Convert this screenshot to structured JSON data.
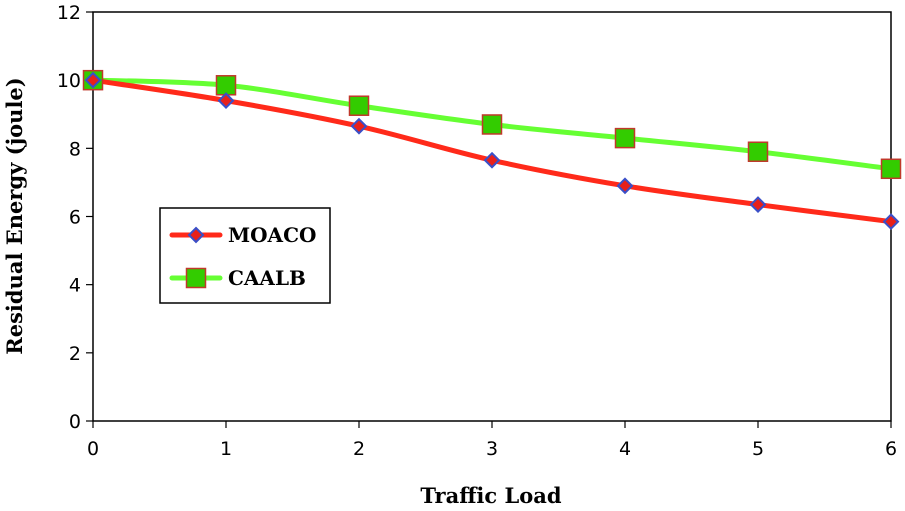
{
  "chart_data": {
    "type": "line",
    "title": "",
    "xlabel": "Traffic Load",
    "ylabel": "Residual  Energy (joule)",
    "x": [
      0,
      1,
      2,
      3,
      4,
      5,
      6
    ],
    "xlim": [
      0,
      6
    ],
    "ylim": [
      0,
      12
    ],
    "x_ticks": [
      "0",
      "1",
      "2",
      "3",
      "4",
      "5",
      "6"
    ],
    "y_ticks": [
      "0",
      "2",
      "4",
      "6",
      "8",
      "10",
      "12"
    ],
    "grid": false,
    "legend_position": "middle-left",
    "series": [
      {
        "name": "MOACO",
        "values": [
          10,
          9.4,
          8.65,
          7.65,
          6.9,
          6.35,
          5.85
        ],
        "line_color": "#ff2a1a",
        "marker": "diamond",
        "marker_fill": "#e8201a",
        "marker_edge": "#3a4fc8"
      },
      {
        "name": "CAALB",
        "values": [
          10,
          9.85,
          9.25,
          8.7,
          8.3,
          7.9,
          7.4
        ],
        "line_color": "#66ff33",
        "marker": "square",
        "marker_fill": "#33cc00",
        "marker_edge": "#c0392b"
      }
    ]
  }
}
